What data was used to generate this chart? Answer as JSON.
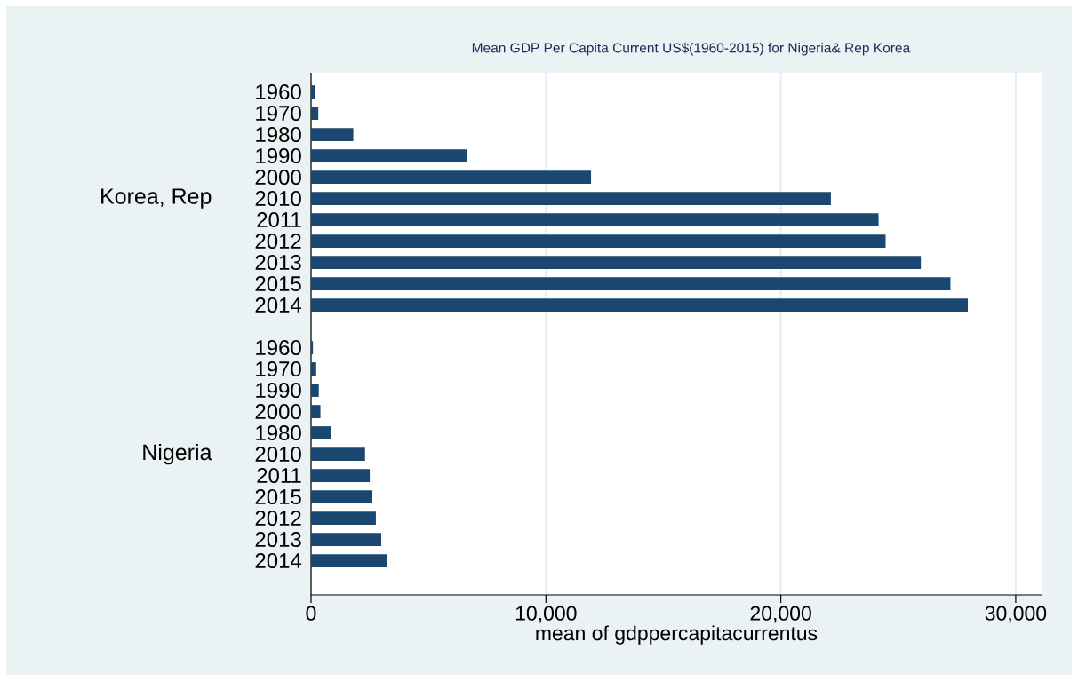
{
  "chart_data": {
    "type": "bar",
    "orientation": "horizontal",
    "title": "Mean GDP Per Capita Current US$(1960-2015) for Nigeria& Rep Korea",
    "xlabel": "mean of gdppercapitacurrentus",
    "categories": [
      "1960",
      "1970",
      "1980",
      "1990",
      "2000",
      "2010",
      "2011",
      "2012",
      "2013",
      "2015",
      "2014",
      null,
      "1960",
      "1970",
      "1990",
      "2000",
      "1980",
      "2010",
      "2011",
      "2015",
      "2012",
      "2013",
      "2014"
    ],
    "values": [
      170,
      310,
      1800,
      6620,
      11920,
      22130,
      24160,
      24460,
      25960,
      27220,
      27960,
      null,
      80,
      220,
      330,
      400,
      850,
      2300,
      2500,
      2610,
      2760,
      2990,
      3220
    ],
    "color": "#1a476f",
    "annotations": [
      "Korea,  Rep",
      "Nigeria"
    ],
    "xlim": [
      0,
      31100
    ],
    "xticks": [
      0,
      {
        "value": 10000,
        "label": "10,000"
      },
      {
        "value": 20000,
        "label": "20,000"
      },
      {
        "value": 30000,
        "label": "30,000"
      }
    ],
    "grid": "x"
  }
}
